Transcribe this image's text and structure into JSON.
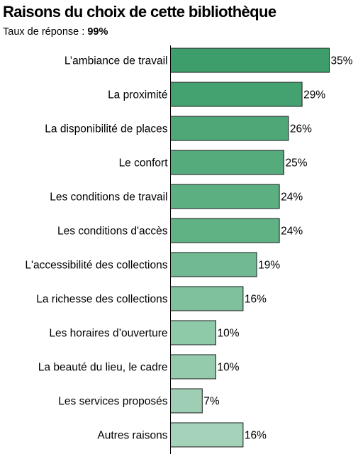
{
  "chart_data": {
    "type": "bar",
    "orientation": "horizontal",
    "title": "Raisons du choix de cette bibliothèque",
    "subtitle_label": "Taux de réponse : ",
    "subtitle_value": "99%",
    "value_suffix": "%",
    "grid": false,
    "categories": [
      "L’ambiance de travail",
      "La proximité",
      "La disponibilité de places",
      "Le confort",
      "Les conditions de travail",
      "Les conditions d'accès",
      "L'accessibilité des collections",
      "La richesse des collections",
      "Les horaires d’ouverture",
      "La beauté du lieu, le cadre",
      "Les services proposés",
      "Autres raisons"
    ],
    "values": [
      35,
      29,
      26,
      25,
      24,
      24,
      19,
      16,
      10,
      10,
      7,
      16
    ],
    "xlim": [
      0,
      35
    ],
    "colors": [
      "#3d9e6c",
      "#44a271",
      "#4ea777",
      "#56ab7c",
      "#5caf81",
      "#60b184",
      "#70b992",
      "#7ec19c",
      "#8ec9a8",
      "#94cbad",
      "#9ecfb4",
      "#a4d3b9"
    ],
    "bar_stroke": "#1a1a1a"
  }
}
